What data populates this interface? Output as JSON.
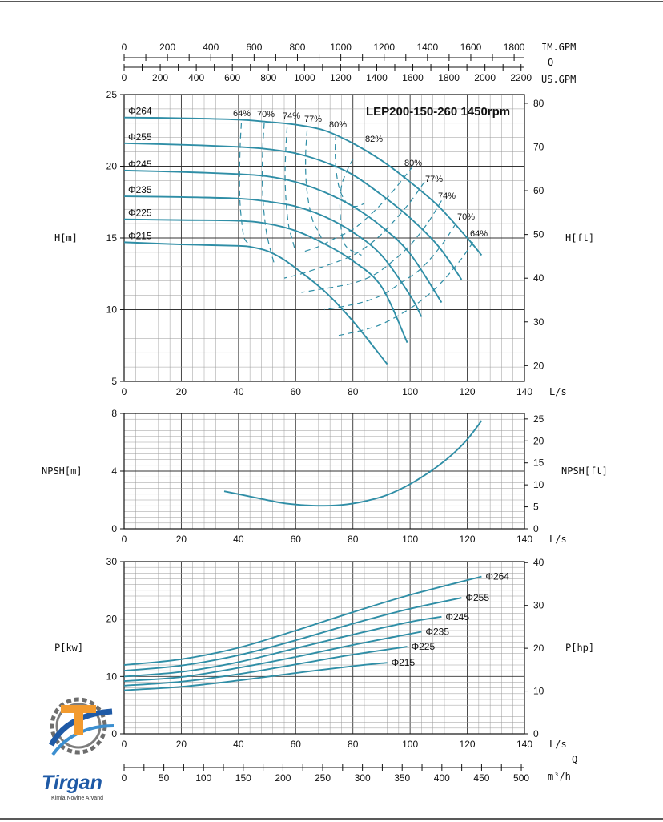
{
  "chart_data": [
    {
      "type": "line",
      "title": "LEP200-150-260 1450rpm",
      "xlabel": "L/s",
      "ylabel": "H[m]",
      "y2label": "H[ft]",
      "xlim": [
        0,
        140
      ],
      "ylim": [
        5,
        25
      ],
      "y2lim": [
        16.4,
        82.0
      ],
      "x_ticks": [
        "0",
        "20",
        "40",
        "60",
        "80",
        "100",
        "120",
        "140"
      ],
      "y_ticks": [
        "5",
        "10",
        "15",
        "20",
        "25"
      ],
      "y2_ticks": [
        "20",
        "30",
        "40",
        "50",
        "60",
        "70",
        "80"
      ],
      "top_axes": [
        {
          "label": "IM.GPM",
          "ticks": [
            "0",
            "200",
            "400",
            "600",
            "800",
            "1000",
            "1200",
            "1400",
            "1600",
            "1800"
          ]
        },
        {
          "label": "Q",
          "ticks": []
        },
        {
          "label": "US.GPM",
          "ticks": [
            "0",
            "200",
            "400",
            "600",
            "800",
            "1000",
            "1200",
            "1400",
            "1600",
            "1800",
            "2000",
            "2200"
          ]
        }
      ],
      "series": [
        {
          "name": "Φ264",
          "x": [
            0,
            20,
            40,
            50,
            60,
            70,
            80,
            90,
            100,
            110,
            120,
            125
          ],
          "y": [
            23.4,
            23.35,
            23.25,
            23.1,
            22.9,
            22.5,
            21.6,
            20.4,
            18.9,
            17.2,
            15.0,
            13.8
          ]
        },
        {
          "name": "Φ255",
          "x": [
            0,
            20,
            40,
            50,
            60,
            70,
            80,
            90,
            100,
            110,
            118
          ],
          "y": [
            21.6,
            21.5,
            21.35,
            21.2,
            20.9,
            20.3,
            19.4,
            18.0,
            16.4,
            14.4,
            12.1
          ]
        },
        {
          "name": "Φ245",
          "x": [
            0,
            20,
            40,
            50,
            60,
            70,
            80,
            90,
            100,
            111
          ],
          "y": [
            19.7,
            19.6,
            19.45,
            19.3,
            18.9,
            18.2,
            17.2,
            15.8,
            13.9,
            10.5
          ]
        },
        {
          "name": "Φ235",
          "x": [
            0,
            20,
            40,
            50,
            60,
            70,
            80,
            90,
            100,
            104
          ],
          "y": [
            17.9,
            17.85,
            17.75,
            17.55,
            17.2,
            16.5,
            15.4,
            13.8,
            11.0,
            9.5
          ]
        },
        {
          "name": "Φ225",
          "x": [
            0,
            20,
            40,
            50,
            60,
            70,
            80,
            90,
            99
          ],
          "y": [
            16.3,
            16.25,
            16.2,
            16.0,
            15.5,
            14.6,
            13.4,
            11.6,
            7.7
          ]
        },
        {
          "name": "Φ215",
          "x": [
            0,
            20,
            40,
            45,
            50,
            55,
            60,
            70,
            80,
            92
          ],
          "y": [
            14.7,
            14.55,
            14.45,
            14.35,
            14.1,
            13.6,
            12.9,
            11.3,
            9.2,
            6.2
          ]
        }
      ],
      "efficiency_curves": [
        {
          "label": "64%",
          "x": [
            41,
            40.6,
            40.4,
            40.5,
            41.2,
            42,
            43.5
          ],
          "y": [
            23.0,
            21.5,
            19.6,
            17.6,
            16.0,
            15.0,
            14.6
          ]
        },
        {
          "label": "70%",
          "x": [
            49,
            48.5,
            48.3,
            48.7,
            49.7,
            51,
            52.5
          ],
          "y": [
            23.0,
            21.3,
            19.3,
            17.3,
            15.5,
            14.3,
            13.2
          ]
        },
        {
          "label": "74%",
          "x": [
            57,
            56.5,
            56.3,
            56.7,
            57.6,
            58.8,
            60
          ],
          "y": [
            22.7,
            21.0,
            19.2,
            17.4,
            15.8,
            14.9,
            14.0
          ]
        },
        {
          "label": "77%",
          "x": [
            64,
            63.5,
            63.6,
            64.5,
            66,
            67.5,
            69
          ],
          "y": [
            22.5,
            20.9,
            19.1,
            17.5,
            16.2,
            15.6,
            15.0
          ]
        },
        {
          "label": "80%",
          "x": [
            74,
            73.8,
            74.2,
            75.5,
            78,
            81,
            84
          ],
          "y": [
            22.2,
            21.0,
            19.6,
            18.3,
            17.4,
            17.2,
            17.4
          ]
        },
        {
          "label": "82%",
          "x": [
            80,
            78,
            76,
            75.5,
            77,
            83
          ],
          "y": [
            20.5,
            19.7,
            18.6,
            17.0,
            14.6,
            13.8
          ]
        },
        {
          "label": "80%",
          "x": [
            101,
            97,
            92,
            86,
            80,
            74,
            68,
            62
          ],
          "y": [
            20.0,
            19.0,
            17.8,
            16.6,
            15.6,
            15.0,
            14.4,
            14.0
          ]
        },
        {
          "label": "77%",
          "x": [
            105,
            100,
            94,
            88,
            81,
            74,
            68,
            62,
            56
          ],
          "y": [
            18.9,
            17.5,
            16.1,
            14.9,
            13.9,
            13.3,
            12.9,
            12.5,
            12.2
          ]
        },
        {
          "label": "74%",
          "x": [
            111,
            106,
            100,
            94,
            88,
            81,
            74,
            68,
            62
          ],
          "y": [
            17.6,
            16.0,
            14.5,
            13.4,
            12.5,
            11.9,
            11.6,
            11.4,
            11.2
          ]
        },
        {
          "label": "70%",
          "x": [
            116,
            111,
            104,
            97,
            90,
            83,
            76,
            70
          ],
          "y": [
            16.0,
            14.5,
            12.9,
            11.9,
            11.0,
            10.5,
            10.2,
            10.0
          ]
        },
        {
          "label": "64%",
          "x": [
            122,
            117,
            110,
            103,
            96,
            89,
            82,
            75
          ],
          "y": [
            14.7,
            13.3,
            11.7,
            10.5,
            9.6,
            8.9,
            8.5,
            8.2
          ]
        }
      ]
    },
    {
      "type": "line",
      "xlabel": "L/s",
      "ylabel": "NPSH[m]",
      "y2label": "NPSH[ft]",
      "xlim": [
        0,
        140
      ],
      "ylim": [
        0,
        8
      ],
      "y2lim": [
        0,
        26.25
      ],
      "x_ticks": [
        "0",
        "20",
        "40",
        "60",
        "80",
        "100",
        "120",
        "140"
      ],
      "y_ticks": [
        "0",
        "4",
        "8"
      ],
      "y2_ticks": [
        "0",
        "5",
        "10",
        "15",
        "20",
        "25"
      ],
      "series": [
        {
          "name": "",
          "x": [
            35,
            45,
            55,
            62,
            70,
            78,
            85,
            92,
            100,
            108,
            115,
            120,
            125
          ],
          "y": [
            2.6,
            2.2,
            1.8,
            1.65,
            1.6,
            1.7,
            1.95,
            2.35,
            3.1,
            4.1,
            5.2,
            6.2,
            7.5
          ]
        }
      ]
    },
    {
      "type": "line",
      "xlabel": "L/s",
      "ylabel": "P[kw]",
      "y2label": "P[hp]",
      "xlim": [
        0,
        140
      ],
      "ylim": [
        0,
        30
      ],
      "y2lim": [
        0,
        40.23
      ],
      "x_ticks": [
        "0",
        "20",
        "40",
        "60",
        "80",
        "100",
        "120",
        "140"
      ],
      "y_ticks": [
        "0",
        "10",
        "20",
        "30"
      ],
      "y2_ticks": [
        "0",
        "10",
        "20",
        "30",
        "40"
      ],
      "bottom_axis": {
        "label": "Q",
        "unit": "m³/h",
        "ticks": [
          "0",
          "50",
          "100",
          "150",
          "200",
          "250",
          "300",
          "350",
          "400",
          "450",
          "500"
        ]
      },
      "series": [
        {
          "name": "Φ264",
          "x": [
            0,
            20,
            40,
            60,
            80,
            100,
            125
          ],
          "y": [
            12.0,
            13.0,
            15.0,
            18.0,
            21.2,
            24.2,
            27.4
          ]
        },
        {
          "name": "Φ255",
          "x": [
            0,
            20,
            40,
            60,
            80,
            100,
            118
          ],
          "y": [
            11.0,
            11.9,
            13.7,
            16.3,
            19.2,
            21.8,
            23.7
          ]
        },
        {
          "name": "Φ245",
          "x": [
            0,
            20,
            40,
            60,
            80,
            100,
            111
          ],
          "y": [
            10.0,
            10.8,
            12.5,
            14.9,
            17.3,
            19.5,
            20.4
          ]
        },
        {
          "name": "Φ235",
          "x": [
            0,
            20,
            40,
            60,
            80,
            104
          ],
          "y": [
            9.2,
            9.9,
            11.5,
            13.4,
            15.5,
            17.8
          ]
        },
        {
          "name": "Φ225",
          "x": [
            0,
            20,
            40,
            60,
            80,
            99
          ],
          "y": [
            8.4,
            9.1,
            10.4,
            12.1,
            13.8,
            15.2
          ]
        },
        {
          "name": "Φ215",
          "x": [
            0,
            20,
            40,
            60,
            80,
            92
          ],
          "y": [
            7.6,
            8.2,
            9.3,
            10.6,
            11.8,
            12.4
          ]
        }
      ]
    }
  ],
  "colors": {
    "curve": "#2f8ea6",
    "grid": "#9a9a9a",
    "grid_major": "#333333",
    "logo_blue": "#1f5aa6",
    "logo_orange": "#f29a2e"
  },
  "logo": {
    "name": "Tirgan",
    "tagline": "Kimia Novine Arvand"
  }
}
